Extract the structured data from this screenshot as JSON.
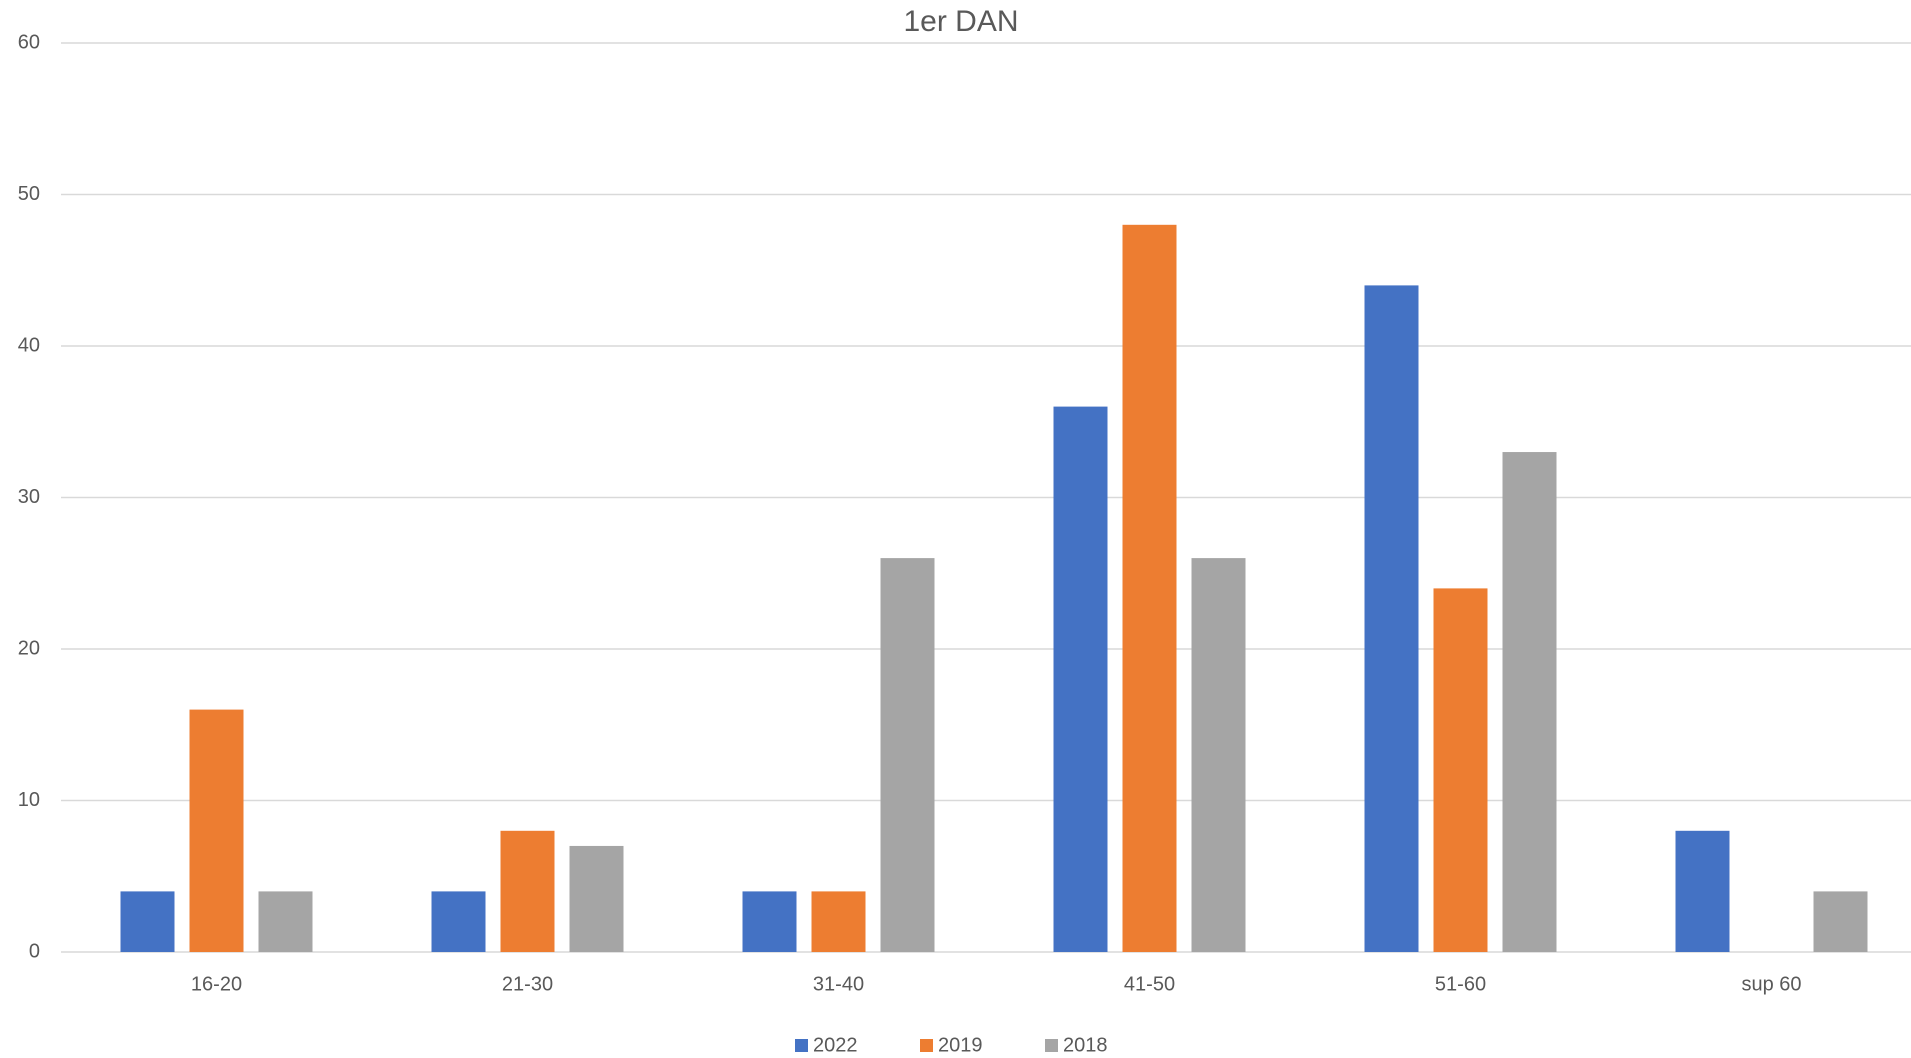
{
  "chart_data": {
    "type": "bar",
    "title": "1er DAN",
    "categories": [
      "16-20",
      "21-30",
      "31-40",
      "41-50",
      "51-60",
      "sup 60"
    ],
    "series": [
      {
        "name": "2022",
        "color": "#4472c4",
        "values": [
          4,
          4,
          4,
          36,
          44,
          8
        ]
      },
      {
        "name": "2019",
        "color": "#ed7d31",
        "values": [
          16,
          8,
          4,
          48,
          24,
          0
        ]
      },
      {
        "name": "2018",
        "color": "#a5a5a5",
        "values": [
          4,
          7,
          26,
          26,
          33,
          4
        ]
      }
    ],
    "ylim": [
      0,
      60
    ],
    "yticks": [
      0,
      10,
      20,
      30,
      40,
      50,
      60
    ],
    "grid": true,
    "legend": "bottom"
  }
}
